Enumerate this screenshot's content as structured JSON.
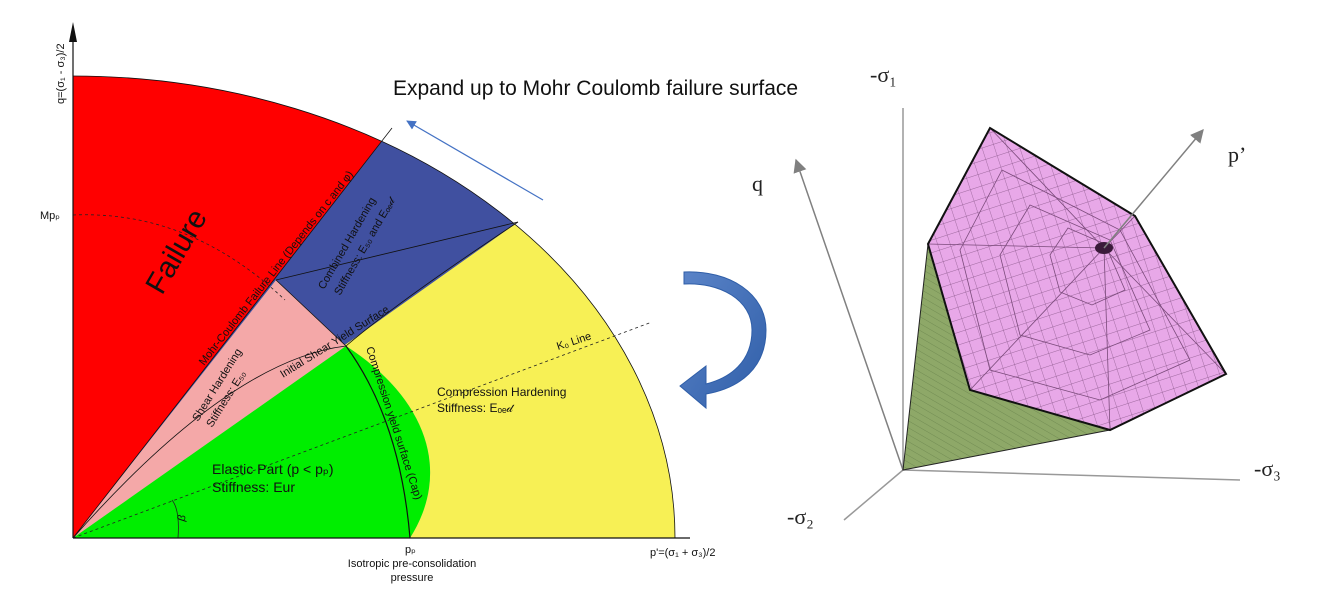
{
  "title": "Expand up to Mohr Coulomb failure surface",
  "left_diagram": {
    "y_axis_label": "q=(σ₁ - σ₃)/2",
    "x_axis_label": "p'=(σ₁ + σ₃)/2",
    "mp_label": "Mpₚ",
    "pp_label": "pₚ",
    "pp_caption_1": "Isotropic pre-consolidation",
    "pp_caption_2": "pressure",
    "failure_label": "Failure",
    "mc_line_label": "Mohr-Coulomb Failure Line (Depends on c and φ)",
    "combined_label_1": "Combined Hardening",
    "combined_label_2": "Stiffness: E₅₀ and Eₒₑ𝒹",
    "shear_label_1": "Shear Hardening",
    "shear_label_2": "Stiffness: E₅₀",
    "shear_yield_label": "Initial Shear Yield Surface",
    "compression_yield_label": "Compression yield surface (Cap)",
    "k0_label": "K₀ Line",
    "compression_label_1": "Compression Hardening",
    "compression_label_2": "Stiffness: Eₒₑ𝒹",
    "elastic_label_1": "Elastic Part (p < pₚ)",
    "elastic_label_2": "Stiffness: Eur",
    "beta_label": "β",
    "colors": {
      "failure": "#ff0000",
      "combined": "#4050a0",
      "shear": "#f4a8a8",
      "compression": "#f7f055",
      "elastic": "#00ee00",
      "arrow": "#4472c4"
    }
  },
  "right_diagram": {
    "sigma1_label": "-σ₁",
    "sigma2_label": "-σ₂",
    "sigma3_label": "-σ₃",
    "q_label": "q",
    "p_label": "p’",
    "colors": {
      "surface_top": "#e8a8e8",
      "surface_side": "#8ea868",
      "mesh": "#7a4a7a"
    }
  }
}
